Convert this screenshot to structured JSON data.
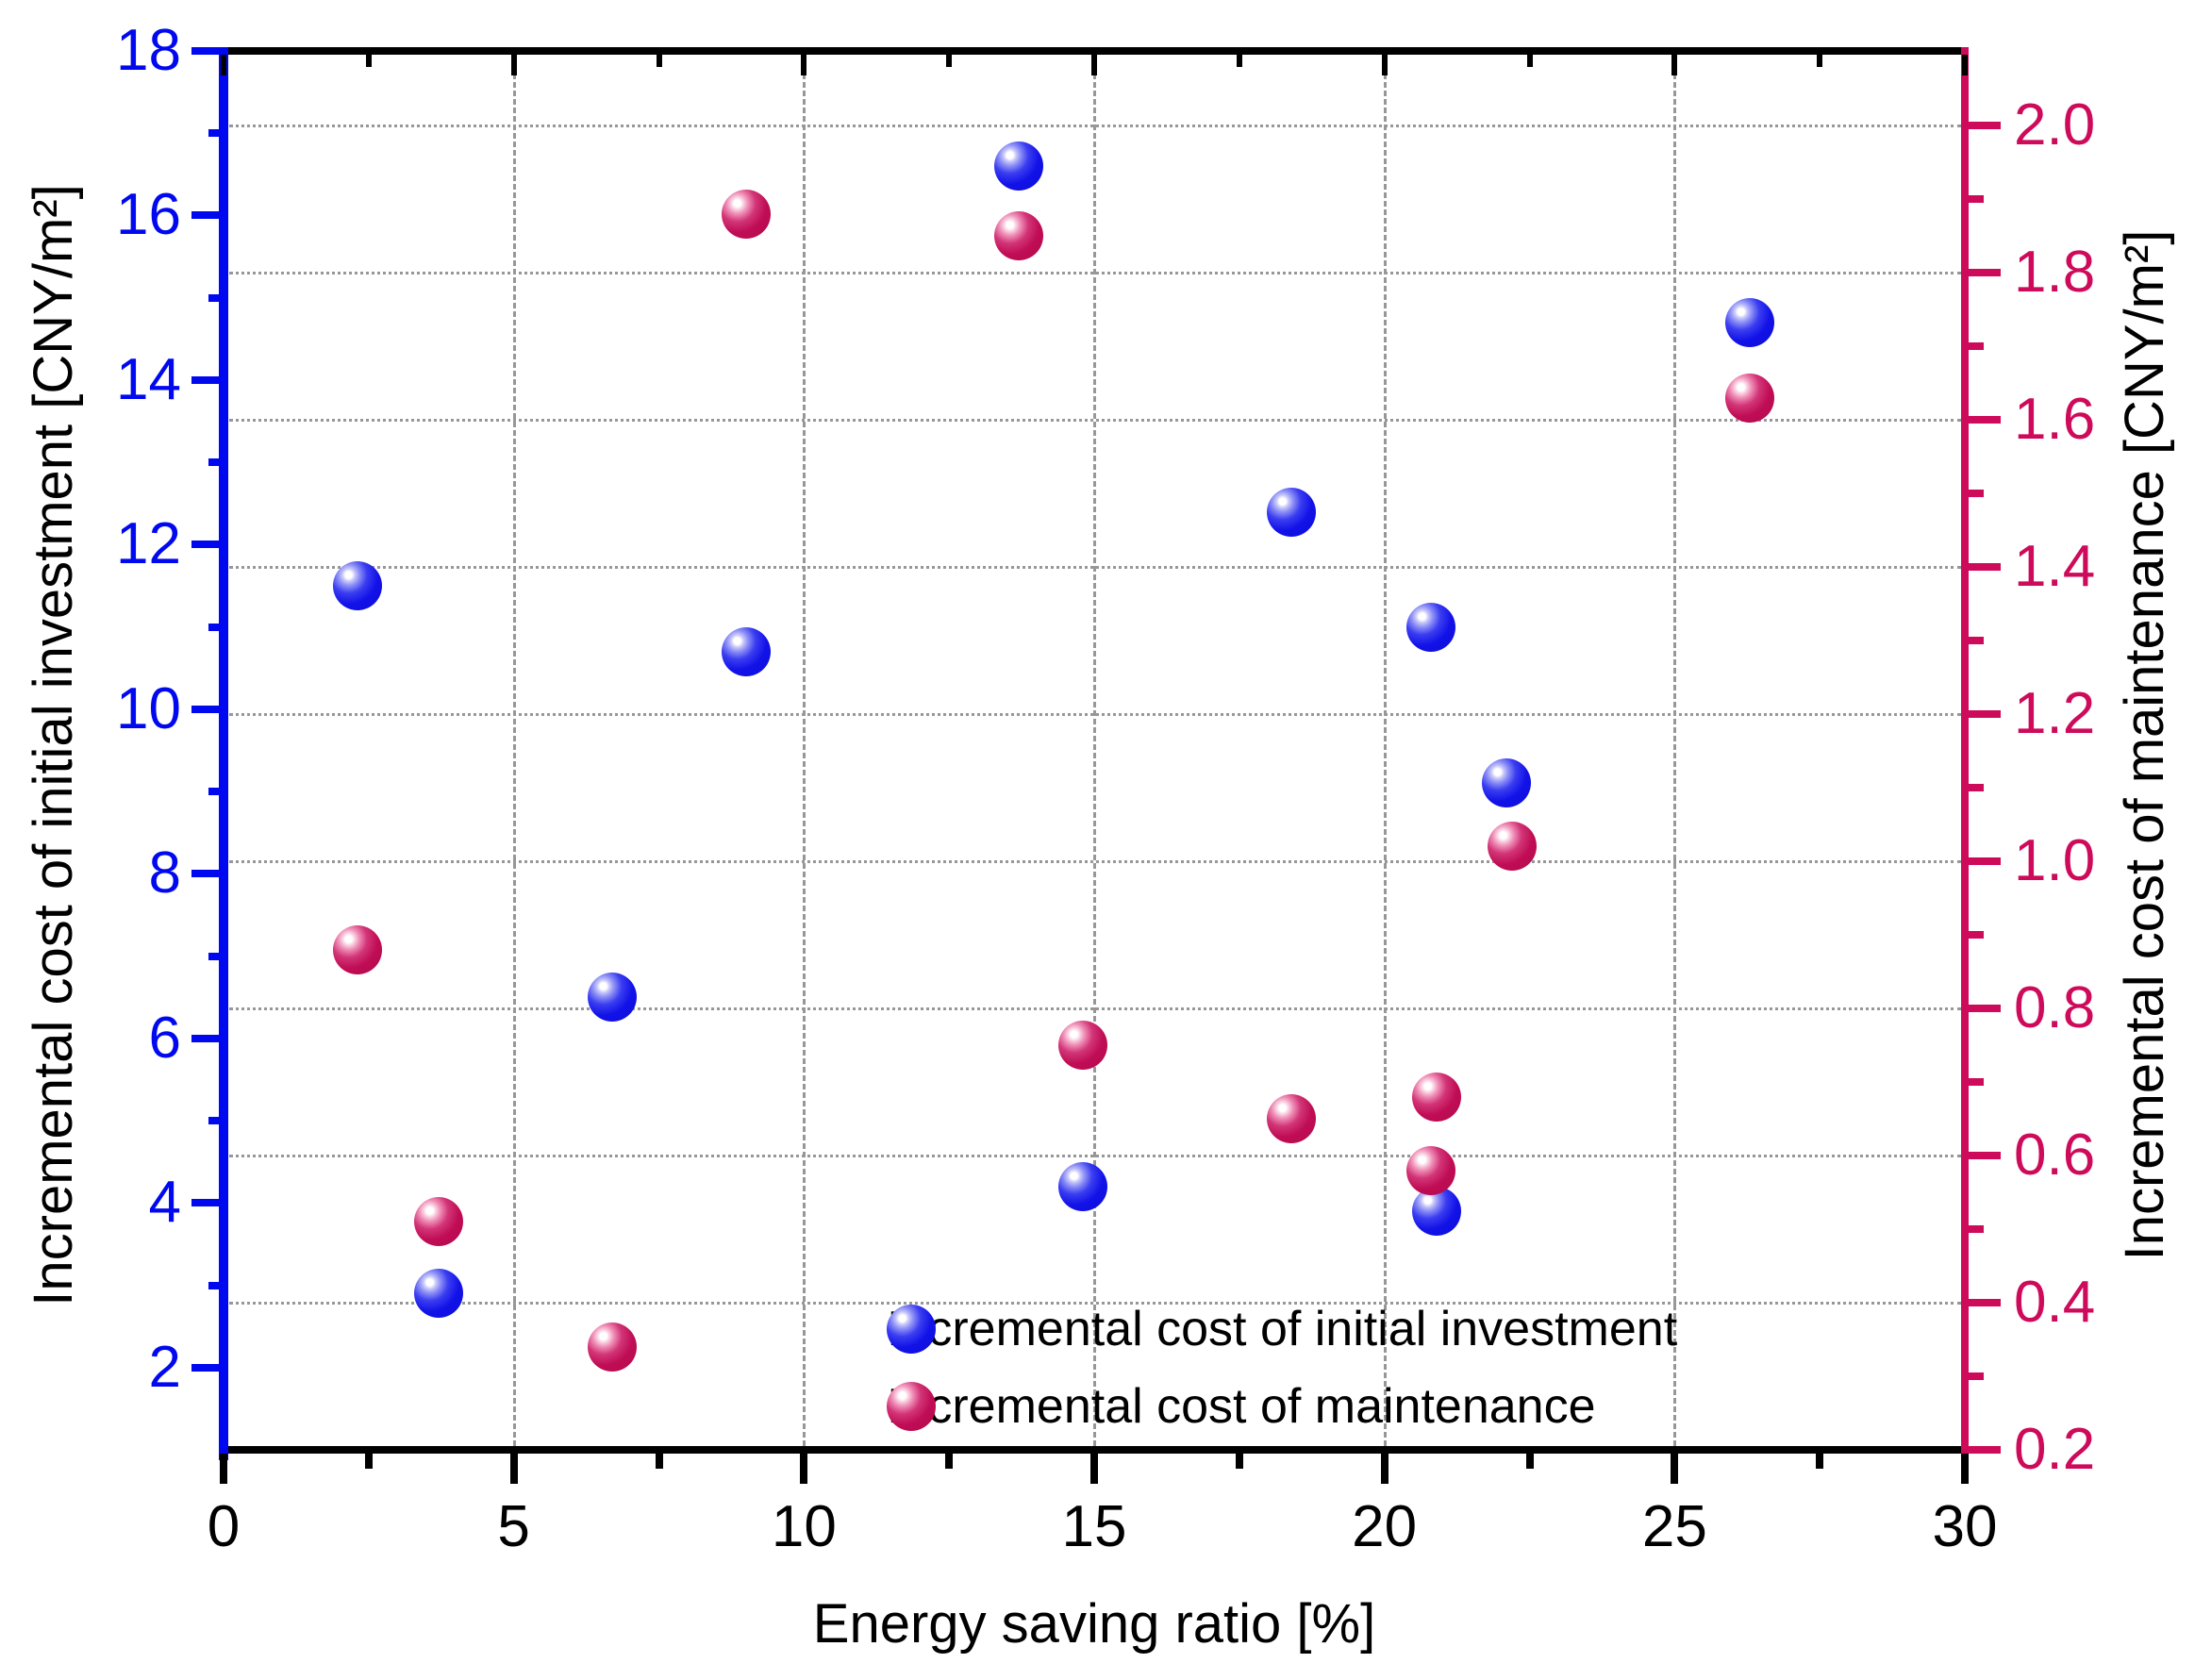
{
  "chart_data": {
    "type": "scatter",
    "title": "",
    "xlabel": "Energy saving ratio [%]",
    "ylabel_left": "Incremental cost of initial investment [CNY/m²]",
    "ylabel_right": "Incremental cost of maintenance [CNY/m²]",
    "x_axis": {
      "min": 0,
      "max": 30,
      "major_ticks": [
        0,
        5,
        10,
        15,
        20,
        25,
        30
      ],
      "minor_ticks": [
        2.5,
        7.5,
        12.5,
        17.5,
        22.5,
        27.5
      ],
      "gridlines": [
        5,
        10,
        15,
        20,
        25
      ],
      "color": "#000000"
    },
    "y_left_axis": {
      "min": 1.0,
      "max": 18,
      "major_ticks": [
        2,
        4,
        6,
        8,
        10,
        12,
        14,
        16,
        18
      ],
      "minor_ticks": [
        3,
        5,
        7,
        9,
        11,
        13,
        15,
        17
      ],
      "color": "#0008f0"
    },
    "y_right_axis": {
      "min": 0.2,
      "max": 2.1,
      "major_ticks": [
        0.2,
        0.4,
        0.6,
        0.8,
        1.0,
        1.2,
        1.4,
        1.6,
        1.8,
        2.0
      ],
      "minor_ticks": [
        0.3,
        0.5,
        0.7,
        0.9,
        1.1,
        1.3,
        1.5,
        1.7,
        1.9
      ],
      "gridlines": [
        0.4,
        0.6,
        0.8,
        1.0,
        1.2,
        1.4,
        1.6,
        1.8,
        2.0
      ],
      "color": "#ce0a5a"
    },
    "grid": {
      "horizontal_style": "dotted",
      "vertical_style": "dashed",
      "color": "#979797"
    },
    "series": [
      {
        "name": "Incremental cost of initial investment",
        "axis": "left",
        "color": "#1212e8",
        "points": [
          [
            2.3,
            11.5
          ],
          [
            3.7,
            2.9
          ],
          [
            6.7,
            6.5
          ],
          [
            9.0,
            10.7
          ],
          [
            13.7,
            16.6
          ],
          [
            14.8,
            4.2
          ],
          [
            18.4,
            12.4
          ],
          [
            20.8,
            11.0
          ],
          [
            20.9,
            3.9
          ],
          [
            22.1,
            9.1
          ],
          [
            26.3,
            14.7
          ]
        ]
      },
      {
        "name": "Incremental cost of maintenance",
        "axis": "right",
        "color": "#c00d55",
        "points": [
          [
            2.3,
            0.88
          ],
          [
            3.7,
            0.51
          ],
          [
            6.7,
            0.34
          ],
          [
            9.0,
            1.88
          ],
          [
            13.7,
            1.85
          ],
          [
            14.8,
            0.75
          ],
          [
            18.4,
            0.65
          ],
          [
            20.9,
            0.68
          ],
          [
            20.8,
            0.58
          ],
          [
            22.2,
            1.02
          ],
          [
            26.3,
            1.63
          ]
        ]
      }
    ],
    "legend": {
      "position": "bottom-center-right",
      "items": [
        "Incremental cost of initial investment",
        "Incremental cost of maintenance"
      ]
    }
  }
}
